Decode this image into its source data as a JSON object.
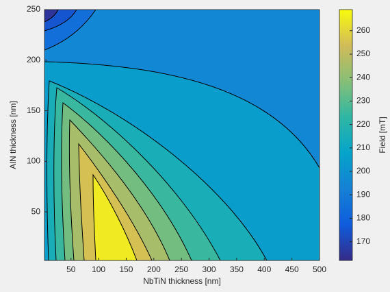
{
  "chart_data": {
    "type": "contour",
    "xlabel": "NbTiN thickness [nm]",
    "ylabel": "AlN thickness [nm]",
    "xlim": [
      2,
      500
    ],
    "xticks": [
      50,
      100,
      150,
      200,
      250,
      300,
      350,
      400,
      450,
      500
    ],
    "ylim": [
      2,
      250
    ],
    "yticks": [
      50,
      100,
      150,
      200,
      250
    ],
    "levels": [
      170,
      180,
      190,
      200,
      210,
      220,
      230,
      240,
      250,
      260
    ],
    "colorbar": {
      "label": "Field [mT]",
      "clim": [
        162,
        269
      ],
      "ticks": [
        170,
        180,
        190,
        200,
        210,
        220,
        230,
        240,
        250,
        260
      ]
    },
    "colormap": [
      "#352a87",
      "#0f5cdd",
      "#1481d6",
      "#06a4ca",
      "#2eb7a4",
      "#87bf77",
      "#d1bb59",
      "#f9fb0e"
    ]
  }
}
